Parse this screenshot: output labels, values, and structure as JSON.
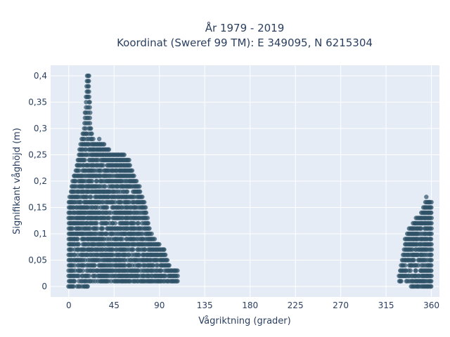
{
  "chart_data": {
    "type": "scatter",
    "title_line1": "År 1979 - 2019",
    "title_line2": "Koordinat (Sweref 99 TM): E 349095, N 6215304",
    "xlabel": "Vågriktning (grader)",
    "ylabel": "Signifikant våghöjd (m)",
    "xlim": [
      -18,
      368
    ],
    "ylim": [
      -0.02,
      0.42
    ],
    "x_ticks": [
      0,
      45,
      90,
      135,
      180,
      225,
      270,
      315,
      360
    ],
    "x_tick_labels": [
      "0",
      "45",
      "90",
      "135",
      "180",
      "225",
      "270",
      "315",
      "360"
    ],
    "y_ticks": [
      0,
      0.05,
      0.1,
      0.15,
      0.2,
      0.25,
      0.3,
      0.35,
      0.4
    ],
    "y_tick_labels": [
      "0",
      "0,05",
      "0,1",
      "0,15",
      "0,2",
      "0,25",
      "0,3",
      "0,35",
      "0,4"
    ],
    "grid": true,
    "colors": {
      "background": "#E5ECF6",
      "grid": "#ffffff",
      "marker": "#2E5166"
    },
    "clusters": [
      {
        "direction_range": [
          0,
          108
        ],
        "envelope": [
          [
            0,
            0.16
          ],
          [
            5,
            0.21
          ],
          [
            10,
            0.25
          ],
          [
            15,
            0.3
          ],
          [
            18,
            0.4
          ],
          [
            20,
            0.4
          ],
          [
            22,
            0.3
          ],
          [
            25,
            0.27
          ],
          [
            30,
            0.28
          ],
          [
            40,
            0.26
          ],
          [
            55,
            0.25
          ],
          [
            60,
            0.24
          ],
          [
            65,
            0.21
          ],
          [
            70,
            0.19
          ],
          [
            75,
            0.16
          ],
          [
            80,
            0.11
          ],
          [
            85,
            0.09
          ],
          [
            95,
            0.07
          ],
          [
            100,
            0.04
          ],
          [
            108,
            0.03
          ]
        ]
      },
      {
        "direction_range": [
          328,
          360
        ],
        "envelope": [
          [
            328,
            0.02
          ],
          [
            334,
            0.09
          ],
          [
            338,
            0.11
          ],
          [
            345,
            0.13
          ],
          [
            350,
            0.14
          ],
          [
            355,
            0.17
          ],
          [
            360,
            0.16
          ]
        ]
      }
    ]
  }
}
